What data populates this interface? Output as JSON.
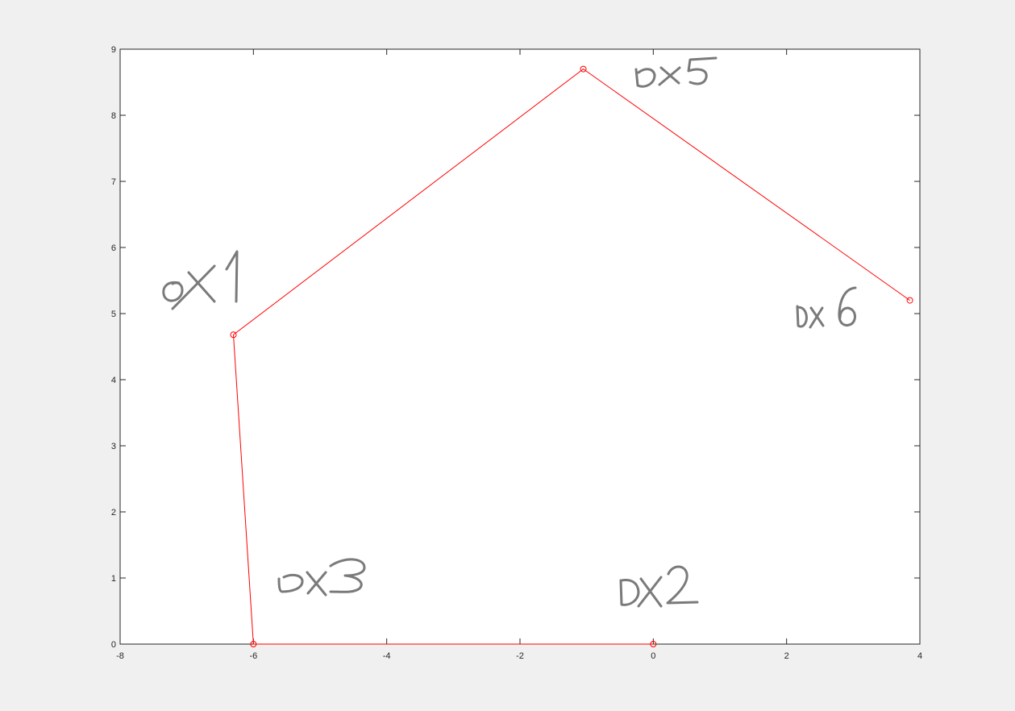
{
  "chart_data": {
    "type": "line",
    "title": "",
    "xlabel": "",
    "ylabel": "",
    "xlim": [
      -8,
      4
    ],
    "ylim": [
      0,
      9
    ],
    "xticks": [
      -8,
      -6,
      -4,
      -2,
      0,
      2,
      4
    ],
    "yticks": [
      0,
      1,
      2,
      3,
      4,
      5,
      6,
      7,
      8,
      9
    ],
    "grid": false,
    "line_color": "#ff0000",
    "marker": "circle-open",
    "series": [
      {
        "x": [
          0,
          -6,
          -6.3,
          -1.05,
          3.85
        ],
        "y": [
          0,
          0,
          4.68,
          8.7,
          5.2
        ]
      }
    ],
    "annotations": [
      {
        "text": "ox1",
        "x": -7.2,
        "y": 5.35
      },
      {
        "text": "ox5",
        "x": -0.3,
        "y": 8.65
      },
      {
        "text": "ox6",
        "x": 2.1,
        "y": 4.95
      },
      {
        "text": "ox3",
        "x": -5.5,
        "y": 0.9
      },
      {
        "text": "ox2",
        "x": -0.5,
        "y": 0.65
      }
    ]
  },
  "colors": {
    "figure_bg": "#f0f0f0",
    "axes_bg": "#ffffff",
    "axis": "#262626",
    "line": "#ff0000",
    "handwriting": "#7a7a7a"
  }
}
